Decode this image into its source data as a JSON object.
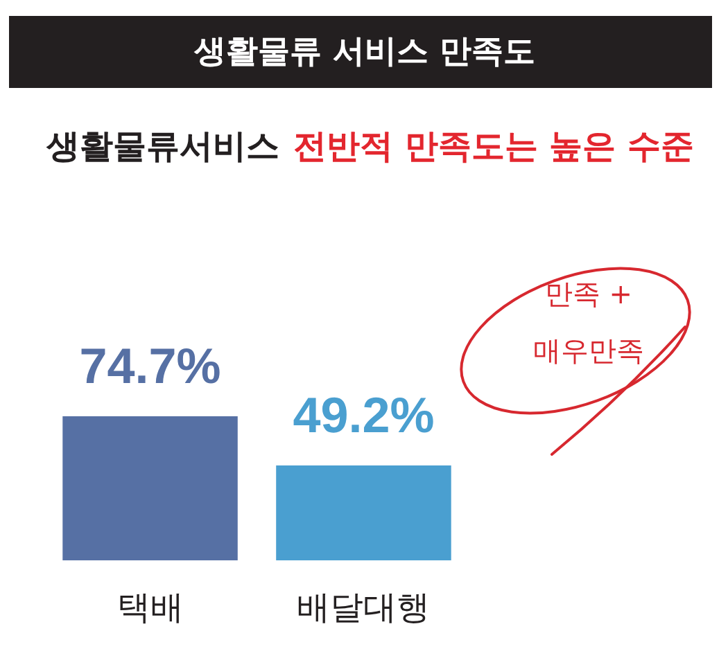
{
  "chart_data": {
    "type": "bar",
    "title": "생활물류 서비스 만족도",
    "subtitle": "생활물류서비스 전반적 만족도는 높은 수준",
    "categories": [
      "택배",
      "배달대행"
    ],
    "values": [
      74.7,
      49.2
    ],
    "colors": [
      "#5670a4",
      "#4a9fd0"
    ],
    "value_labels": [
      "74.7%",
      "49.2%"
    ],
    "annotations": [
      "만족 +\n매우만족"
    ]
  }
}
